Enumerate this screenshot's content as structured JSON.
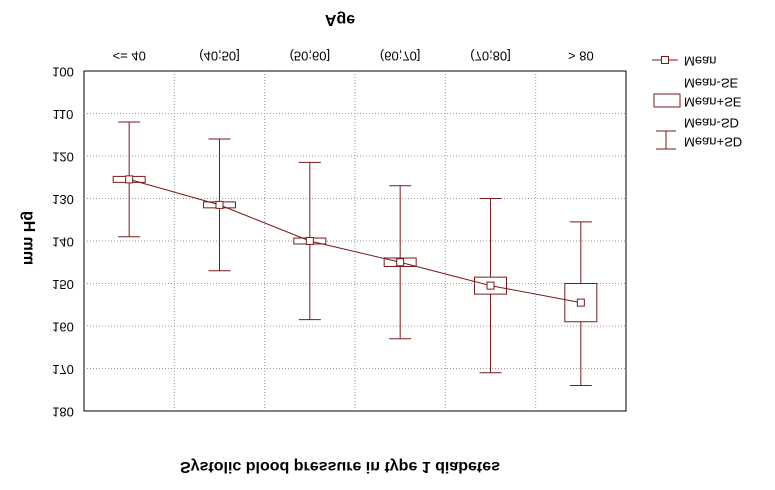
{
  "chart_data": {
    "type": "line",
    "title": "Age",
    "xlabel": "Systolic blood pressure in type 1 diabetes",
    "ylabel": "mm Hg",
    "categories": [
      "<= 40",
      "(40;50]",
      "(50;60]",
      "(60;70]",
      "(70;80]",
      "> 80"
    ],
    "ylim": [
      100,
      180
    ],
    "yticks": [
      100,
      110,
      120,
      130,
      140,
      150,
      160,
      170,
      180
    ],
    "y_axis_inverted": true,
    "image_mirrored_vertically": true,
    "grid": true,
    "series": [
      {
        "name": "Mean",
        "values": [
          125.5,
          131.5,
          140.0,
          145.0,
          150.5,
          154.5
        ]
      },
      {
        "name": "Mean-SE",
        "values": [
          124.8,
          130.8,
          139.3,
          144.0,
          148.5,
          150.0
        ]
      },
      {
        "name": "Mean+SE",
        "values": [
          126.2,
          132.2,
          140.7,
          146.0,
          152.5,
          159.0
        ]
      },
      {
        "name": "Mean-SD",
        "values": [
          112.0,
          116.0,
          121.5,
          127.0,
          130.0,
          135.5
        ]
      },
      {
        "name": "Mean+SD",
        "values": [
          139.0,
          147.0,
          158.5,
          163.0,
          171.0,
          174.0
        ]
      }
    ],
    "legend": {
      "placement": "right",
      "items": [
        {
          "label": "Mean",
          "symbol": "line-square"
        },
        {
          "label": "Mean-SE",
          "label2": "Mean+SE",
          "symbol": "box"
        },
        {
          "label": "Mean-SD",
          "label2": "Mean+SD",
          "symbol": "whisker"
        }
      ]
    },
    "colors": {
      "series": "#7a1a1a",
      "grid": "#9a9a9a",
      "frame": "#000000",
      "background": "#ffffff"
    }
  }
}
